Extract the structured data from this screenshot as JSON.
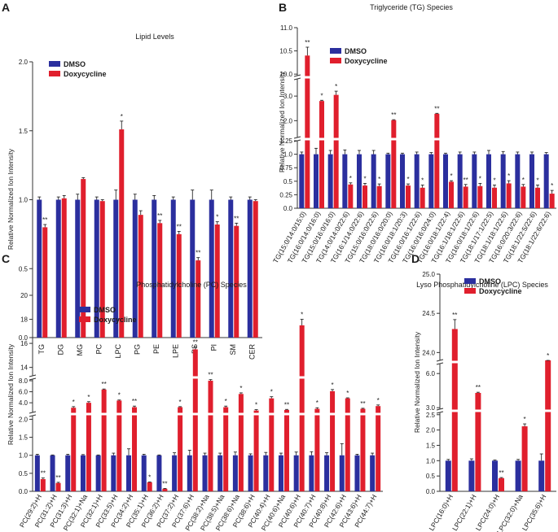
{
  "colors": {
    "dmso": "#2b2f9e",
    "dox": "#e01f2d",
    "axis": "#333333"
  },
  "chart_data": [
    {
      "panel": "A",
      "type": "bar",
      "title": "Lipid Levels",
      "ylabel": "Relative Normalized Ion Intensity",
      "xlabel": "",
      "ylim": [
        0,
        2.0
      ],
      "yticks": [
        "0.0",
        "0.5",
        "1.0",
        "1.5",
        "2.0"
      ],
      "legend": [
        "DMSO",
        "Doxycycline"
      ],
      "categories": [
        "TG",
        "DG",
        "MG",
        "PC",
        "LPC",
        "PG",
        "PE",
        "LPE",
        "PS",
        "PI",
        "SM",
        "CER"
      ],
      "series": [
        {
          "name": "DMSO",
          "values": [
            1,
            1,
            1,
            1,
            1,
            1,
            1,
            1,
            1,
            1,
            1,
            1
          ],
          "errors": [
            0.02,
            0.02,
            0.04,
            0.02,
            0.07,
            0.04,
            0.03,
            0.02,
            0.07,
            0.07,
            0.02,
            0.02
          ]
        },
        {
          "name": "Doxycycline",
          "values": [
            0.8,
            1.01,
            1.15,
            0.99,
            1.51,
            0.89,
            0.83,
            0.75,
            0.56,
            0.82,
            0.81,
            0.99
          ],
          "errors": [
            0.02,
            0.02,
            0.01,
            0.01,
            0.06,
            0.03,
            0.02,
            0.02,
            0.02,
            0.02,
            0.02,
            0.01
          ]
        }
      ],
      "annotations": [
        "**",
        "",
        "",
        "",
        "*",
        "",
        "**",
        "**",
        "**",
        "*",
        "**",
        ""
      ]
    },
    {
      "panel": "B",
      "type": "bar",
      "title": "Triglyceride (TG) Species",
      "ylabel": "Relative Normalized Ion Intensity",
      "xlabel": "",
      "ylim": [
        0,
        11.0
      ],
      "yticks": [
        "0.0",
        "0.25",
        "0.5",
        "0.75",
        "1.0",
        "1.25",
        "2.0",
        "3.0",
        "10.0",
        "10.5",
        "11.0"
      ],
      "legend": [
        "DMSO",
        "Doxycycline"
      ],
      "categories": [
        "TG(15:0/14:0/15:0)",
        "TG(16:0/14:0/16:0)",
        "TG(15:0/16:0/16:0)",
        "TG(14:0/14:0/22:6)",
        "TG(16:1/14:0/22:6)",
        "TG(15:0/16:0/22:6)",
        "TG(18:0/16:0/20:0)",
        "TG(16:0/18:1/20:3)",
        "TG(16:0/16:1/22:6)",
        "TG(16:0/16:0/24:0)",
        "TG(16:0/18:1/22:4)",
        "TG(16:1/18:1/22:6)",
        "TG(16:0/18:1/22:6)",
        "TG(18:1/17:1/22:5)",
        "TG(18:1/18:1/22:6)",
        "TG(16:0/20:3/22:6)",
        "TG(18:1/22:5/22:6)",
        "TG(18:1/22:6/22:6)"
      ],
      "series": [
        {
          "name": "DMSO",
          "values": [
            1,
            1,
            1,
            1,
            1,
            1,
            1,
            1,
            1,
            1,
            1,
            1,
            1,
            1,
            1,
            1,
            1,
            1
          ],
          "errors": [
            0.04,
            0.11,
            0.07,
            0.08,
            0.07,
            0.07,
            0.02,
            0.02,
            0.04,
            0.03,
            0.02,
            0.04,
            0.04,
            0.07,
            0.05,
            0.04,
            0.04,
            0.03
          ]
        },
        {
          "name": "Doxycycline",
          "values": [
            10.4,
            2.8,
            3.05,
            0.44,
            0.42,
            0.41,
            2.02,
            0.42,
            0.38,
            2.28,
            0.49,
            0.4,
            0.41,
            0.38,
            0.46,
            0.4,
            0.38,
            0.27
          ],
          "errors": [
            0.18,
            0.03,
            0.15,
            0.03,
            0.04,
            0.04,
            0.02,
            0.03,
            0.05,
            0.02,
            0.02,
            0.04,
            0.05,
            0.05,
            0.05,
            0.04,
            0.05,
            0.06
          ]
        }
      ],
      "annotations": [
        "**",
        "*",
        "*",
        "*",
        "*",
        "*",
        "**",
        "*",
        "*",
        "**",
        "*",
        "**",
        "*",
        "*",
        "*",
        "*",
        "*",
        "*"
      ]
    },
    {
      "panel": "C",
      "type": "bar",
      "title": "Phosphatidylcholine (PC) Species",
      "ylabel": "Relative Normalized Ion Intensity",
      "xlabel": "",
      "ylim": [
        0,
        20
      ],
      "yticks": [
        "0.0",
        "0.5",
        "1.0",
        "1.5",
        "2.0",
        "4.0",
        "6.0",
        "8.0",
        "14",
        "16",
        "18",
        "20"
      ],
      "legend": [
        "DMSO",
        "Doxycycline"
      ],
      "categories": [
        "PC(29:2)+H",
        "PC(31:2)+H",
        "PC(31:3)+H",
        "PC(32:1)+Na",
        "PC(32:1)+H",
        "PC(33:5)+H",
        "PC(34:2)+H",
        "PC(35:1)+H",
        "PC(36:2)+H",
        "PC(37:2)+H",
        "PC(37:6)+H",
        "PC(38:2)+Na",
        "PC(38:5)+Na",
        "PC(38:6)+Na",
        "PC(38:6)+H",
        "PC(40:4)+H",
        "PC(40:6)+Na",
        "PC(40:6)+H",
        "PC(40:7)+H",
        "PC(40:8)+H",
        "PC(42:6)+H",
        "PC(43:6)+H",
        "PC(44:7)+H"
      ],
      "series": [
        {
          "name": "DMSO",
          "values": [
            1,
            1,
            1,
            1,
            1,
            1,
            1,
            1,
            1,
            1,
            1,
            1,
            1,
            1,
            1,
            1,
            1,
            1,
            1,
            1,
            1,
            1,
            1
          ],
          "errors": [
            0.03,
            0.01,
            0.03,
            0.02,
            0.01,
            0.06,
            0.18,
            0.03,
            0.01,
            0.07,
            0.14,
            0.06,
            0.06,
            0.09,
            0.04,
            0.08,
            0.06,
            0.09,
            0.1,
            0.07,
            0.32,
            0.03,
            0.06
          ]
        },
        {
          "name": "Doxycycline",
          "values": [
            0.34,
            0.23,
            3.1,
            4.0,
            6.4,
            4.4,
            3.2,
            0.25,
            0.07,
            3.2,
            15.5,
            8.0,
            3.2,
            5.6,
            2.6,
            4.8,
            2.7,
            17.5,
            2.9,
            6.1,
            4.8,
            2.9,
            3.4
          ],
          "errors": [
            0.03,
            0.02,
            0.2,
            0.2,
            0.1,
            0.1,
            0.2,
            0.01,
            0.01,
            0.1,
            0.2,
            0.2,
            0.2,
            0.2,
            0.15,
            0.3,
            0.1,
            0.5,
            0.2,
            0.3,
            0.1,
            0.1,
            0.2
          ]
        }
      ],
      "annotations": [
        "**",
        "**",
        "*",
        "*",
        "**",
        "*",
        "**",
        "*",
        "**",
        "*",
        "**",
        "**",
        "*",
        "*",
        "*",
        "*",
        "**",
        "*",
        "*",
        "*",
        "*",
        "**",
        "*"
      ]
    },
    {
      "panel": "D",
      "type": "bar",
      "title": "Lyso Phosphatidylcholine (LPC) Species",
      "ylabel": "Relative Normalized Ion Intensity",
      "xlabel": "",
      "ylim": [
        0,
        25.0
      ],
      "yticks": [
        "0.0",
        "0.5",
        "1.0",
        "1.5",
        "2.0",
        "2.5",
        "3.0",
        "6.0",
        "24.0",
        "24.5",
        "25.0"
      ],
      "legend": [
        "DMSO",
        "Doxycycline"
      ],
      "categories": [
        "LPC(16:0)+H",
        "LPC(22:1)+H",
        "LPC(24:0)+H",
        "LPC(32:0)+Na",
        "LPC(35:6)+H"
      ],
      "series": [
        {
          "name": "DMSO",
          "values": [
            1,
            1,
            1,
            1,
            1
          ],
          "errors": [
            0.04,
            0.06,
            0.02,
            0.04,
            0.22
          ]
        },
        {
          "name": "Doxycycline",
          "values": [
            24.3,
            4.3,
            0.43,
            2.12,
            7.9
          ],
          "errors": [
            0.12,
            0.06,
            0.02,
            0.08,
            0.3
          ]
        }
      ],
      "annotations": [
        "**",
        "**",
        "**",
        "*",
        "*"
      ]
    }
  ]
}
